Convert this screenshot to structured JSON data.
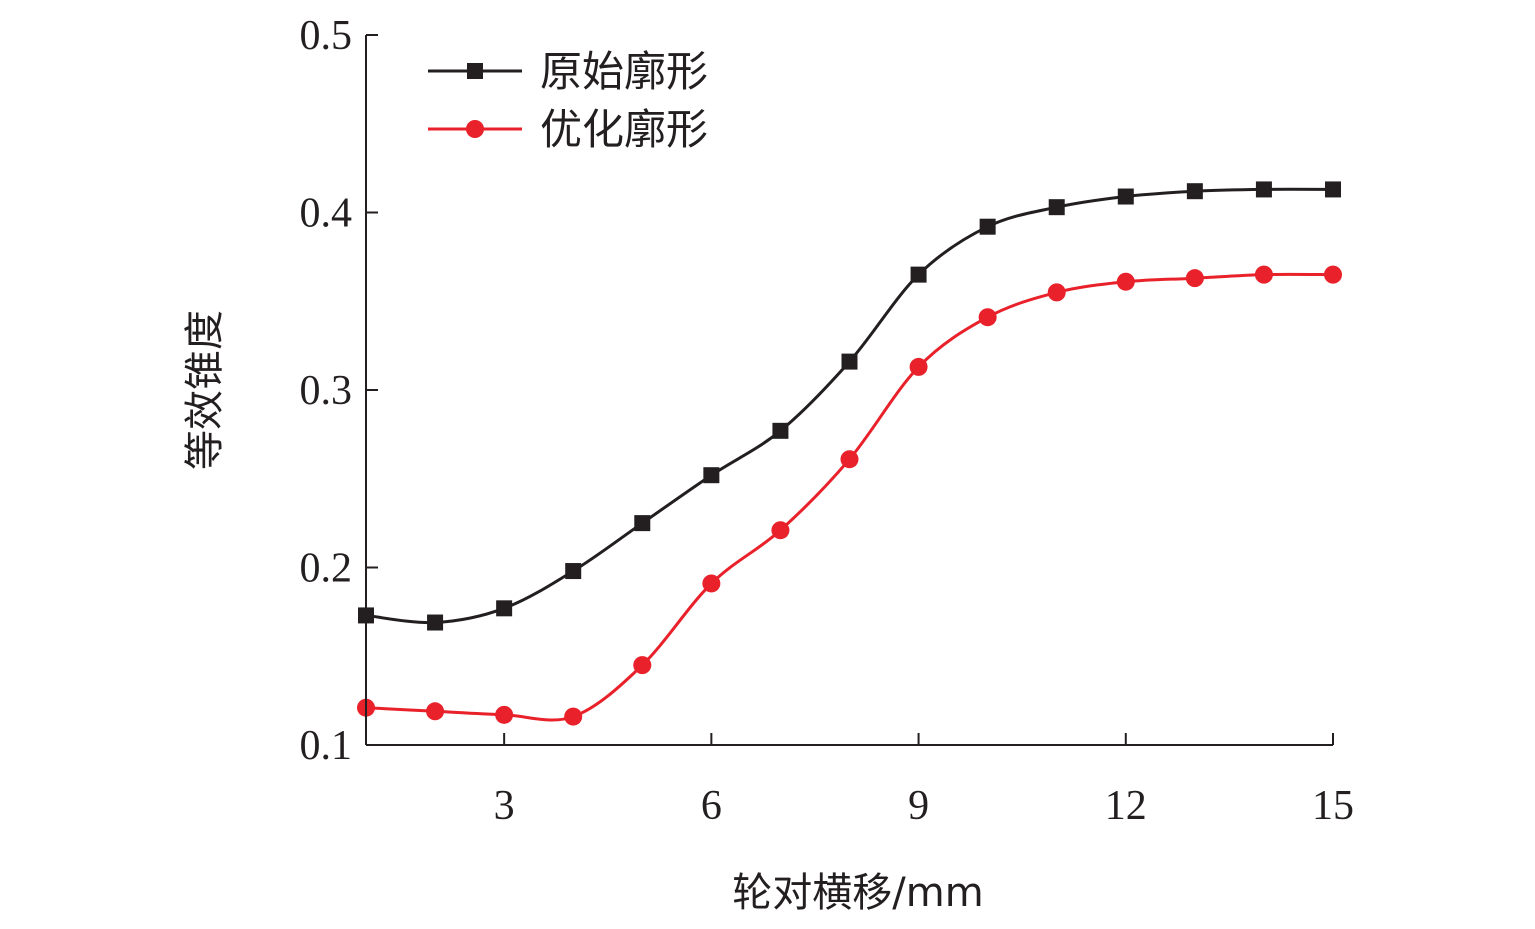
{
  "chart_data": {
    "type": "line",
    "xlabel": "轮对横移/mm",
    "ylabel": "等效锥度",
    "xlim": [
      1,
      15
    ],
    "ylim": [
      0.1,
      0.5
    ],
    "x_ticks": [
      3,
      6,
      9,
      12,
      15
    ],
    "y_ticks": [
      0.1,
      0.2,
      0.3,
      0.4,
      0.5
    ],
    "x_tick_labels": [
      "3",
      "6",
      "9",
      "12",
      "15"
    ],
    "y_tick_labels": [
      "0.1",
      "0.2",
      "0.3",
      "0.4",
      "0.5"
    ],
    "grid": false,
    "legend_position": "top-left",
    "x": [
      1,
      2,
      3,
      4,
      5,
      6,
      7,
      8,
      9,
      10,
      11,
      12,
      13,
      14,
      15
    ],
    "series": [
      {
        "name": "原始廓形",
        "color": "#231f20",
        "marker": "square",
        "values": [
          0.173,
          0.169,
          0.177,
          0.198,
          0.225,
          0.252,
          0.277,
          0.316,
          0.365,
          0.392,
          0.403,
          0.409,
          0.412,
          0.413,
          0.413
        ]
      },
      {
        "name": "优化廓形",
        "color": "#e8212a",
        "marker": "circle",
        "values": [
          0.121,
          0.119,
          0.117,
          0.116,
          0.145,
          0.191,
          0.221,
          0.261,
          0.313,
          0.341,
          0.355,
          0.361,
          0.363,
          0.365,
          0.365
        ]
      }
    ]
  }
}
